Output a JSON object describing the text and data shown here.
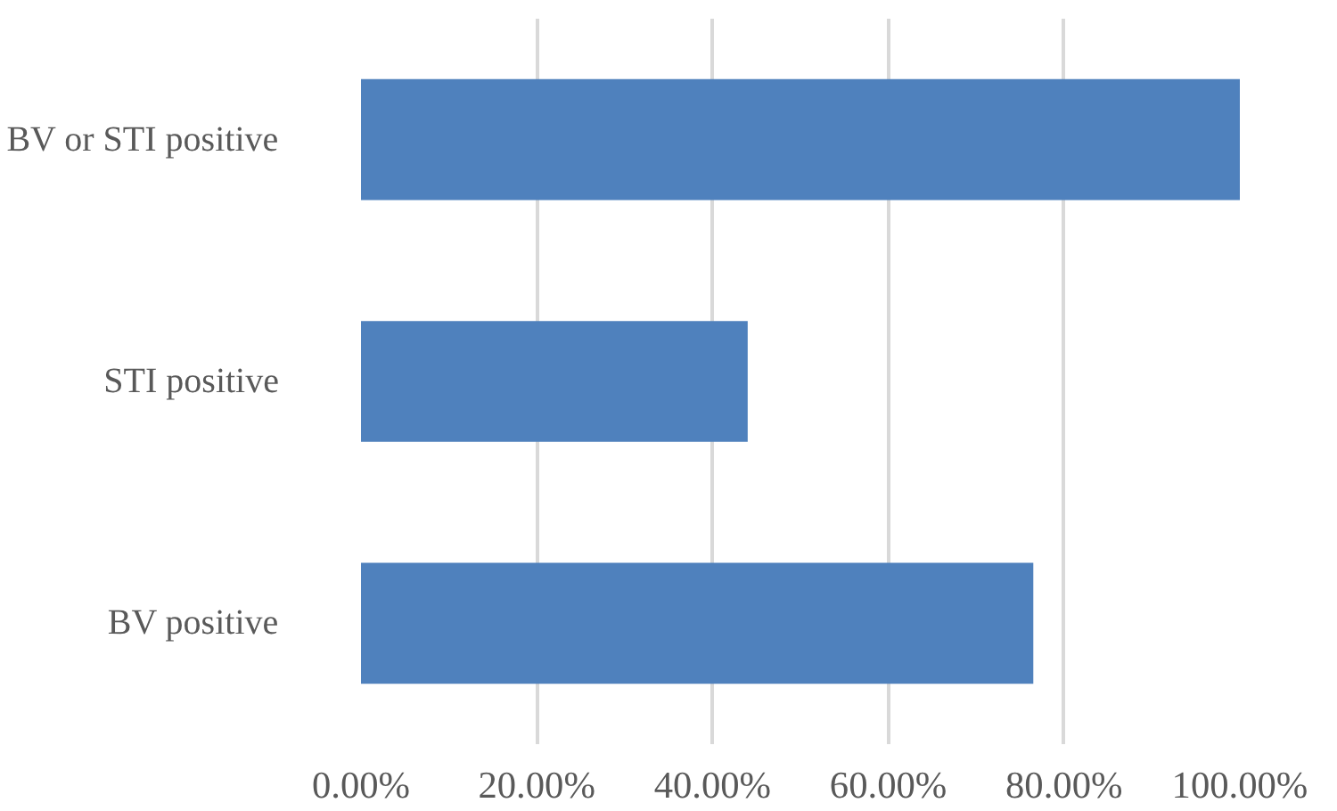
{
  "chart_data": {
    "type": "bar",
    "orientation": "horizontal",
    "categories": [
      "BV or STI positive",
      "STI positive",
      "BV positive"
    ],
    "values": [
      100,
      44,
      76.5
    ],
    "color": "#4f81bd",
    "xlim": [
      0,
      100
    ],
    "xticks": [
      {
        "value": 0,
        "label": "0.00%"
      },
      {
        "value": 20,
        "label": "20.00%"
      },
      {
        "value": 40,
        "label": "40.00%"
      },
      {
        "value": 60,
        "label": "60.00%"
      },
      {
        "value": 80,
        "label": "80.00%"
      },
      {
        "value": 100,
        "label": "100.00%"
      }
    ],
    "grid": "x"
  }
}
